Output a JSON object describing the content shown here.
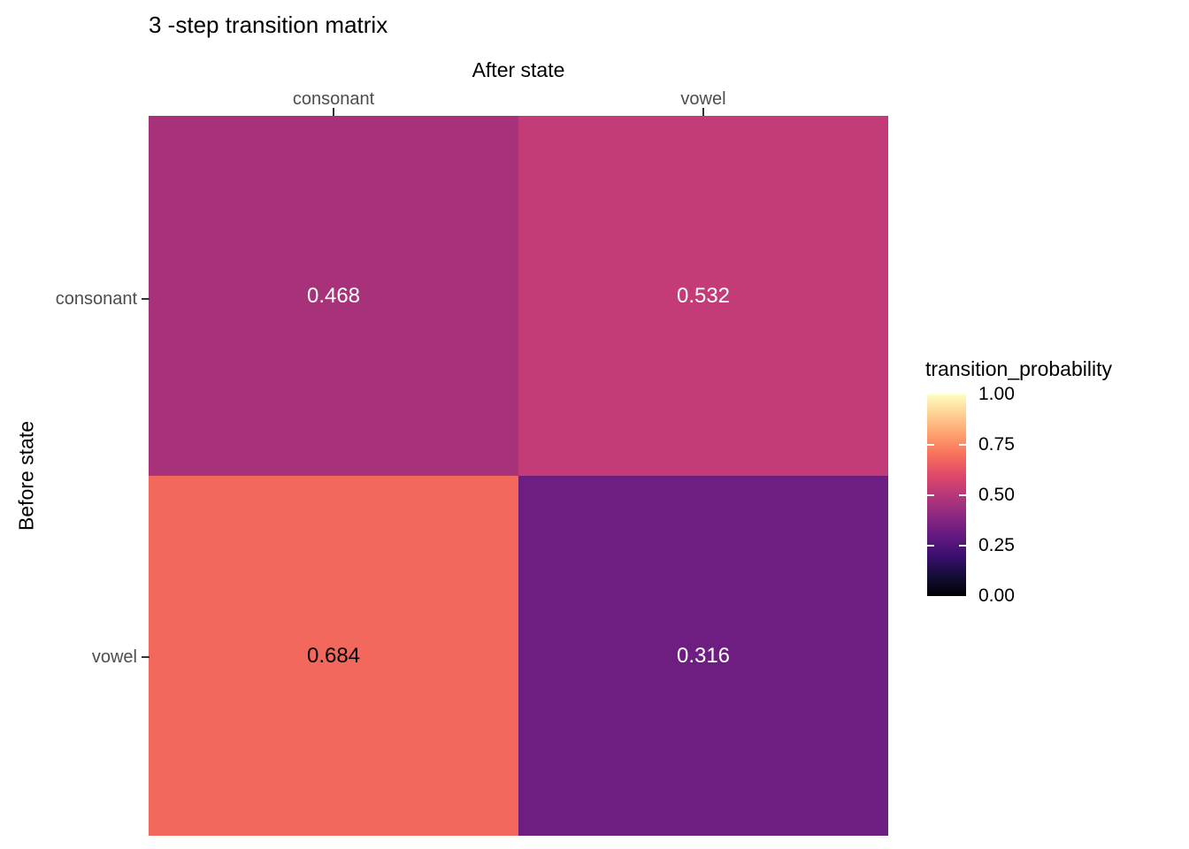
{
  "chart_data": {
    "type": "heatmap",
    "title": "3 -step transition matrix",
    "x_axis_title": "After state",
    "y_axis_title": "Before state",
    "x_categories": [
      "consonant",
      "vowel"
    ],
    "y_categories": [
      "consonant",
      "vowel"
    ],
    "values": [
      [
        0.468,
        0.532
      ],
      [
        0.684,
        0.316
      ]
    ],
    "value_range": [
      0,
      1
    ],
    "colormap": "magma",
    "grid": false,
    "legend": {
      "title": "transition_probability",
      "position": "right",
      "tick_labels": [
        "1.00",
        "0.75",
        "0.50",
        "0.25",
        "0.00"
      ]
    }
  },
  "cells": [
    {
      "before": "consonant",
      "after": "consonant",
      "label": "0.468",
      "bg": "#a83279",
      "fg": "#ffffff"
    },
    {
      "before": "consonant",
      "after": "vowel",
      "label": "0.532",
      "bg": "#c33c78",
      "fg": "#ffffff"
    },
    {
      "before": "vowel",
      "after": "consonant",
      "label": "0.684",
      "bg": "#f2685c",
      "fg": "#000000"
    },
    {
      "before": "vowel",
      "after": "vowel",
      "label": "0.316",
      "bg": "#6e1e81",
      "fg": "#ffffff"
    }
  ],
  "colors": {
    "axis_text": "#4d4d4d",
    "tick_mark": "#333333",
    "title_text": "#000000",
    "background": "#ffffff"
  },
  "legend_gradient_stops": [
    "#000004",
    "#140e36",
    "#3b0f70",
    "#641a80",
    "#8c2981",
    "#b73779",
    "#de4968",
    "#f7705c",
    "#fe9f6d",
    "#fecf92",
    "#fcfdbf"
  ]
}
